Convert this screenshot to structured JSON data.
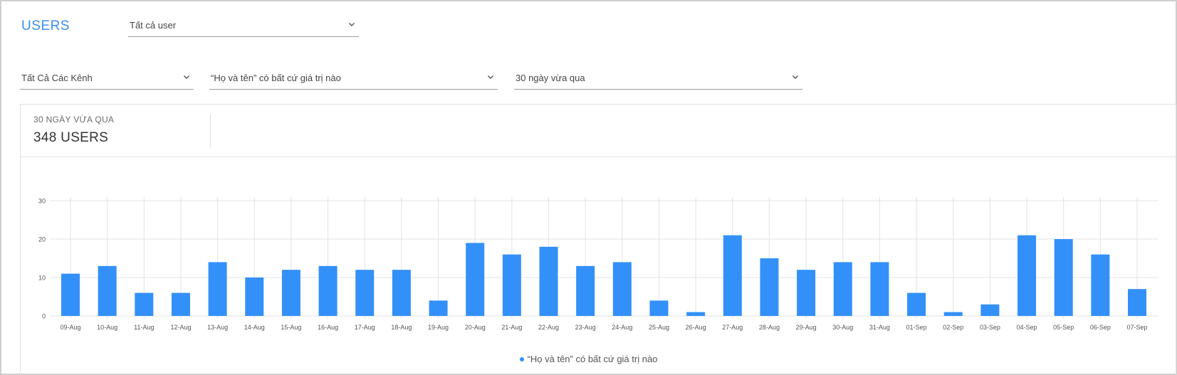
{
  "header": {
    "title": "USERS",
    "user_filter": "Tất cả user"
  },
  "filters": {
    "channel": "Tất Cả Các Kênh",
    "condition": "“Họ và tên” có bất cứ giá trị nào",
    "range": "30 ngày vừa qua"
  },
  "summary": {
    "caption": "30 NGÀY VỪA QUA",
    "value": "348 USERS"
  },
  "colors": {
    "accent": "#3a8ff0",
    "bar": "#3390f8",
    "grid": "#e3e3e3"
  },
  "icons": [
    "chevron-down-icon"
  ],
  "chart_data": {
    "type": "bar",
    "title": "",
    "xlabel": "",
    "ylabel": "",
    "ylim": [
      0,
      30
    ],
    "yticks": [
      0,
      10,
      20,
      30
    ],
    "grid": true,
    "legend_position": "bottom-center",
    "categories": [
      "09-Aug",
      "10-Aug",
      "11-Aug",
      "12-Aug",
      "13-Aug",
      "14-Aug",
      "15-Aug",
      "16-Aug",
      "17-Aug",
      "18-Aug",
      "19-Aug",
      "20-Aug",
      "21-Aug",
      "22-Aug",
      "23-Aug",
      "24-Aug",
      "25-Aug",
      "26-Aug",
      "27-Aug",
      "28-Aug",
      "29-Aug",
      "30-Aug",
      "31-Aug",
      "01-Sep",
      "02-Sep",
      "03-Sep",
      "04-Sep",
      "05-Sep",
      "06-Sep",
      "07-Sep"
    ],
    "series": [
      {
        "name": "“Họ và tên” có bất cứ giá trị nào",
        "values": [
          11,
          13,
          6,
          6,
          14,
          10,
          12,
          13,
          12,
          12,
          4,
          19,
          16,
          18,
          13,
          14,
          4,
          1,
          21,
          15,
          12,
          14,
          14,
          6,
          1,
          3,
          21,
          20,
          16,
          7
        ]
      }
    ]
  }
}
